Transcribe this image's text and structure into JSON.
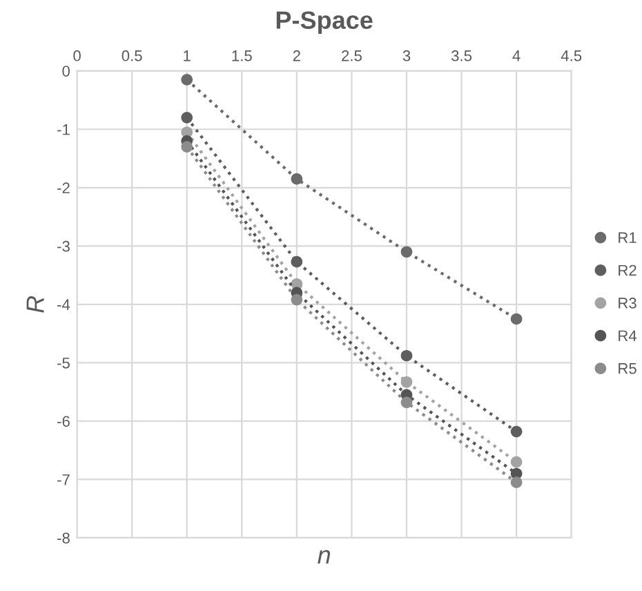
{
  "chart_data": {
    "type": "line",
    "title": "P-Space",
    "xlabel": "n",
    "ylabel": "R",
    "x": [
      1,
      2,
      3,
      4
    ],
    "series": [
      {
        "name": "R1",
        "color": "#6b6b6b",
        "values": [
          -0.15,
          -1.85,
          -3.1,
          -4.25
        ]
      },
      {
        "name": "R2",
        "color": "#5e5e5e",
        "values": [
          -0.8,
          -3.27,
          -4.88,
          -6.18
        ]
      },
      {
        "name": "R3",
        "color": "#a3a3a3",
        "values": [
          -1.05,
          -3.65,
          -5.33,
          -6.7
        ]
      },
      {
        "name": "R4",
        "color": "#545454",
        "values": [
          -1.2,
          -3.8,
          -5.55,
          -6.9
        ]
      },
      {
        "name": "R5",
        "color": "#8c8c8c",
        "values": [
          -1.3,
          -3.92,
          -5.68,
          -7.05
        ]
      }
    ],
    "xlim": [
      0,
      4.5
    ],
    "xticks": [
      0,
      0.5,
      1,
      1.5,
      2,
      2.5,
      3,
      3.5,
      4,
      4.5
    ],
    "ylim": [
      -8,
      0
    ],
    "yticks": [
      -8,
      -7,
      -6,
      -5,
      -4,
      -3,
      -2,
      -1,
      0
    ],
    "grid": true,
    "legend": "right",
    "marker": "circle",
    "line_style": "dotted"
  }
}
